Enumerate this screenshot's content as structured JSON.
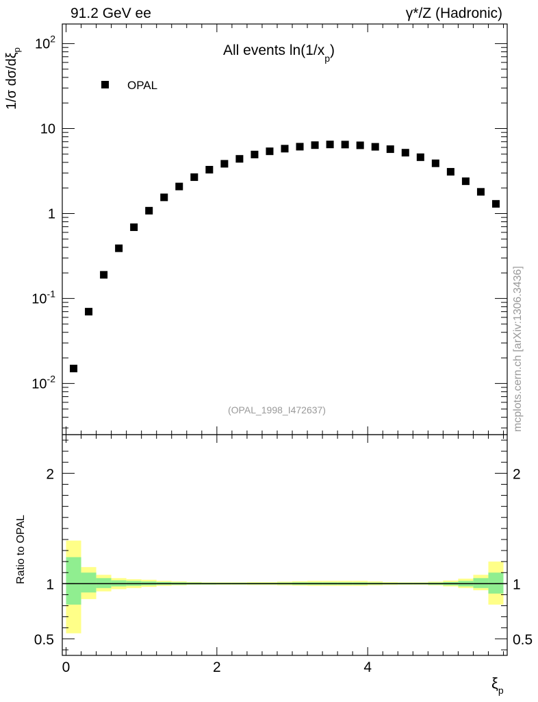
{
  "header": {
    "left": "91.2 GeV ee",
    "right": "γ*/Z (Hadronic)"
  },
  "side_text": "mcplots.cern.ch [arXiv:1306.3436]",
  "chart_data": [
    {
      "type": "scatter",
      "title": "All events ln(1/x_p)",
      "ylabel": "1/σ dσ/dξ_p",
      "yscale": "log",
      "ylim": [
        0.0025,
        170
      ],
      "xlim": [
        -0.05,
        5.85
      ],
      "y_tick_labels": [
        "10^-2",
        "10^-1",
        "1",
        "10",
        "10^2"
      ],
      "legend": {
        "entries": [
          "OPAL"
        ],
        "position": "top-left"
      },
      "annotation": "(OPAL_1998_I472637)",
      "series": [
        {
          "name": "OPAL",
          "x": [
            0.1,
            0.3,
            0.5,
            0.7,
            0.9,
            1.1,
            1.3,
            1.5,
            1.7,
            1.9,
            2.1,
            2.3,
            2.5,
            2.7,
            2.9,
            3.1,
            3.3,
            3.5,
            3.7,
            3.9,
            4.1,
            4.3,
            4.5,
            4.7,
            4.9,
            5.1,
            5.3,
            5.5,
            5.7
          ],
          "y": [
            0.015,
            0.07,
            0.19,
            0.39,
            0.69,
            1.08,
            1.55,
            2.08,
            2.68,
            3.28,
            3.85,
            4.4,
            4.95,
            5.4,
            5.8,
            6.12,
            6.38,
            6.5,
            6.48,
            6.35,
            6.1,
            5.72,
            5.2,
            4.6,
            3.9,
            3.1,
            2.4,
            1.8,
            1.3
          ]
        }
      ]
    },
    {
      "type": "area",
      "ylabel": "Ratio to OPAL",
      "xlabel": "ξ_p",
      "ylim": [
        0.35,
        2.35
      ],
      "xlim": [
        -0.05,
        5.85
      ],
      "x_tick_labels": [
        "0",
        "2",
        "4"
      ],
      "y_tick_labels": [
        "0.5",
        "1",
        "2"
      ],
      "reference_line": 1,
      "colors": {
        "inner_band": "#90ee90",
        "outer_band": "#ffff88"
      },
      "bins": [
        0.0,
        0.2,
        0.4,
        0.6,
        0.8,
        1.0,
        1.2,
        1.4,
        1.6,
        1.8,
        2.0,
        2.2,
        2.4,
        2.6,
        2.8,
        3.0,
        3.2,
        3.4,
        3.6,
        3.8,
        4.0,
        4.2,
        4.4,
        4.6,
        4.8,
        5.0,
        5.2,
        5.4,
        5.6,
        5.8
      ],
      "inner_band": {
        "low": [
          0.81,
          0.92,
          0.96,
          0.975,
          0.98,
          0.985,
          0.99,
          0.99,
          0.992,
          0.992,
          0.993,
          0.993,
          0.993,
          0.993,
          0.992,
          0.99,
          0.99,
          0.99,
          0.99,
          0.99,
          0.992,
          0.993,
          0.993,
          0.993,
          0.99,
          0.985,
          0.975,
          0.96,
          0.91
        ],
        "high": [
          1.24,
          1.1,
          1.05,
          1.03,
          1.025,
          1.02,
          1.015,
          1.012,
          1.01,
          1.008,
          1.008,
          1.008,
          1.008,
          1.008,
          1.01,
          1.012,
          1.012,
          1.012,
          1.012,
          1.012,
          1.01,
          1.008,
          1.008,
          1.008,
          1.01,
          1.015,
          1.025,
          1.05,
          1.1
        ]
      },
      "outer_band": {
        "low": [
          0.55,
          0.86,
          0.93,
          0.95,
          0.96,
          0.97,
          0.98,
          0.985,
          0.99,
          0.99,
          0.99,
          0.99,
          0.988,
          0.988,
          0.985,
          0.982,
          0.98,
          0.98,
          0.98,
          0.98,
          0.985,
          0.988,
          0.99,
          0.99,
          0.985,
          0.975,
          0.96,
          0.94,
          0.81
        ],
        "high": [
          1.39,
          1.15,
          1.08,
          1.05,
          1.04,
          1.035,
          1.025,
          1.02,
          1.015,
          1.012,
          1.012,
          1.012,
          1.014,
          1.014,
          1.018,
          1.022,
          1.025,
          1.025,
          1.025,
          1.025,
          1.02,
          1.014,
          1.012,
          1.012,
          1.018,
          1.028,
          1.045,
          1.08,
          1.2
        ]
      }
    }
  ]
}
